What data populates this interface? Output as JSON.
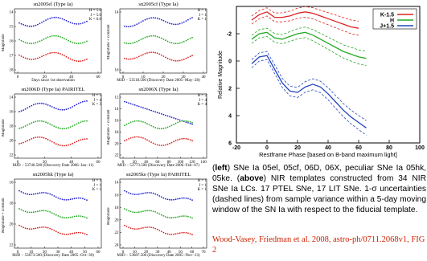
{
  "panels": [
    {
      "title": "sn2005el (Type Ia)",
      "ylabel": "Magnitude",
      "xlabel": "Days since 1st observation",
      "legend": [
        "H = 5.0",
        "J = 5.0",
        "K = 6.0"
      ],
      "xticks": [
        "0",
        "20",
        "40",
        "60"
      ],
      "yticks": [
        "14",
        "15",
        "16",
        "17",
        "18"
      ]
    },
    {
      "title": "sn2005cf (Type Ia)",
      "ylabel": "Magnitude + constant",
      "xlabel": "MJD − 53518.500 (Discovery Date 2005−May−28)",
      "legend": [
        "H = 1",
        "J = 1",
        "K = 1"
      ],
      "xticks": [
        "0",
        "10",
        "20",
        "30",
        "40"
      ],
      "yticks": [
        "14",
        "16"
      ]
    },
    {
      "title": "sn2006D (Type Ia) PAIRITEL",
      "ylabel": "Magnitude",
      "xlabel": "MJD − 53746.500 (Discovery Date 2006−Jan−11)",
      "legend": [
        "H = 5",
        "J = 4",
        "K = 3"
      ],
      "xticks": [
        "0",
        "20",
        "40",
        "60"
      ],
      "yticks": [
        "14",
        "16",
        "18",
        "20",
        "22"
      ]
    },
    {
      "title": "sn2006X (Type Ia)",
      "ylabel": "Magnitude + constant",
      "xlabel": "MJD − 53773.500 (Discovery Date 2006−Feb−07)",
      "legend": [
        "H = 2",
        "J = 4",
        "K = 4"
      ],
      "xticks": [
        "0",
        "20",
        "40",
        "60",
        "80",
        "100",
        "120",
        "140"
      ],
      "yticks": [
        "12",
        "14",
        "16",
        "18",
        "20",
        "22"
      ]
    },
    {
      "title": "sn2005hk (Type Ia)",
      "ylabel": "Magnitude + constant",
      "xlabel": "MJD − 53673.500 (Discovery Date 2005−Oct−30)",
      "legend": [
        "H = 1",
        "J = 1",
        "K = 1"
      ],
      "xticks": [
        "0",
        "10",
        "20",
        "30",
        "40",
        "50",
        "60"
      ],
      "yticks": [
        "16",
        "18",
        "20",
        "22"
      ]
    },
    {
      "title": "sn2005ke (Type Ia) PAIRITEL",
      "ylabel": "Magnitude",
      "xlabel": "MJD − 53687.500 (Discovery Date 2005−Nov−13)",
      "legend": [
        "H = 1",
        "J = 1",
        "K = 1"
      ],
      "xticks": [
        "0",
        "10",
        "20",
        "30",
        "40",
        "50",
        "60",
        "70"
      ],
      "yticks": [
        "14",
        "16",
        "18",
        "20",
        "22",
        "24"
      ]
    }
  ],
  "colors": {
    "H": "#2222cc",
    "J": "#22aa22",
    "K": "#dd2222",
    "caption_link": "#cc2200"
  },
  "chart_data": {
    "type": "line",
    "ylabel": "Relative Magnitude",
    "xlabel": "Restframe Phase [based on B-band maximum light]",
    "xlim": [
      -20,
      100
    ],
    "ylim": [
      6,
      -4
    ],
    "xticks": [
      -20,
      0,
      20,
      40,
      60,
      80,
      100
    ],
    "yticks": [
      -2,
      0,
      2,
      4,
      6
    ],
    "legend": [
      "K-1.5",
      "H",
      "J+1.5"
    ],
    "series": [
      {
        "name": "K-1.5",
        "color": "#dd2222",
        "x": [
          -10,
          -5,
          0,
          5,
          10,
          15,
          20,
          25,
          30,
          35,
          40,
          45,
          50,
          55,
          60
        ],
        "y": [
          -3.0,
          -3.4,
          -3.6,
          -3.2,
          -3.2,
          -3.3,
          -3.5,
          -3.6,
          -3.5,
          -3.3,
          -3.1,
          -2.9,
          -2.7,
          -2.5,
          -2.4
        ]
      },
      {
        "name": "H",
        "color": "#22aa22",
        "x": [
          -10,
          -5,
          0,
          5,
          10,
          15,
          20,
          25,
          30,
          35,
          40,
          45,
          50,
          55,
          60,
          65
        ],
        "y": [
          -1.6,
          -2.0,
          -2.1,
          -1.7,
          -1.6,
          -1.8,
          -2.0,
          -2.1,
          -1.9,
          -1.6,
          -1.3,
          -1.0,
          -0.7,
          -0.5,
          -0.3,
          -0.2
        ]
      },
      {
        "name": "J+1.5",
        "color": "#2244bb",
        "x": [
          -10,
          -5,
          0,
          5,
          10,
          15,
          20,
          25,
          30,
          35,
          40,
          45,
          50,
          55,
          60,
          65
        ],
        "y": [
          0.2,
          -0.3,
          -0.4,
          0.6,
          1.6,
          2.2,
          2.3,
          1.9,
          1.7,
          1.9,
          2.4,
          3.0,
          3.6,
          4.1,
          4.5,
          4.9
        ]
      }
    ]
  },
  "caption": {
    "open": "(",
    "left": "left",
    "part1": ") SNe Ia 05el, 05cf, 06D, 06X, peculiar SNe Ia 05hk, 05ke. (",
    "above": "above",
    "part2": ") NIR templates constructed from  34 NIR SNe Ia LCs. 17 PTEL SNe, 17 LIT SNe.  1-σ uncertainties (dashed lines) from sample variance within a 5-day moving window of the SN Ia with respect to the fiducial template."
  },
  "citation": "Wood-Vasey, Friedman et al. 2008, astro-ph/0711.2068v1, FIG 2"
}
